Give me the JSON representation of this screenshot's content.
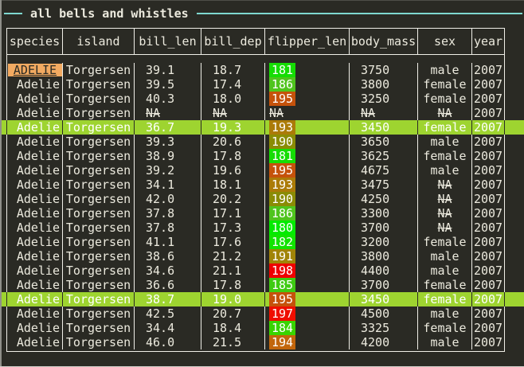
{
  "title": "all bells and whistles",
  "colors": {
    "bg": "#2a2a24",
    "text": "#eceade",
    "border": "#f0efe8",
    "accent_rule": "#7fd8d0",
    "hl": "#9ed430",
    "badge_bg": "#f2aa61",
    "badge_text": "#2a2a24",
    "chip_text": "#ffffff",
    "edge": "#8f8f89",
    "bottom_line": "#cfcfc9"
  },
  "table": {
    "columns": [
      {
        "key": "species",
        "label": "species"
      },
      {
        "key": "island",
        "label": "island"
      },
      {
        "key": "bill_len",
        "label": "bill_len"
      },
      {
        "key": "bill_dep",
        "label": "bill_dep"
      },
      {
        "key": "flipper_len",
        "label": "flipper_len"
      },
      {
        "key": "body_mass",
        "label": "body_mass"
      },
      {
        "key": "sex",
        "label": "sex"
      },
      {
        "key": "year",
        "label": "year"
      }
    ],
    "rows": [
      {
        "species": "ADELIE",
        "badge": true,
        "island": "Torgersen",
        "bill_len": "39.1",
        "bill_dep": "18.7",
        "flipper_len": "181",
        "flipper_color": "#15dd04",
        "body_mass": "3750",
        "sex": "male",
        "year": "2007",
        "highlight": false
      },
      {
        "species": "Adelie",
        "island": "Torgersen",
        "bill_len": "39.5",
        "bill_dep": "17.4",
        "flipper_len": "186",
        "flipper_color": "#4fc41d",
        "body_mass": "3800",
        "sex": "female",
        "year": "2007",
        "highlight": false
      },
      {
        "species": "Adelie",
        "island": "Torgersen",
        "bill_len": "40.3",
        "bill_dep": "18.0",
        "flipper_len": "195",
        "flipper_color": "#c5520b",
        "body_mass": "3250",
        "sex": "female",
        "year": "2007",
        "highlight": false
      },
      {
        "species": "Adelie",
        "island": "Torgersen",
        "bill_len": "NA",
        "bill_dep": "NA",
        "flipper_len": "NA",
        "body_mass": "NA",
        "sex": "NA",
        "year": "2007",
        "highlight": false
      },
      {
        "species": "Adelie",
        "island": "Torgersen",
        "bill_len": "36.7",
        "bill_dep": "19.3",
        "flipper_len": "193",
        "flipper_color": "#ab7b08",
        "body_mass": "3450",
        "sex": "female",
        "year": "2007",
        "highlight": true
      },
      {
        "species": "Adelie",
        "island": "Torgersen",
        "bill_len": "39.3",
        "bill_dep": "20.6",
        "flipper_len": "190",
        "flipper_color": "#8a8c05",
        "body_mass": "3650",
        "sex": "male",
        "year": "2007",
        "highlight": false
      },
      {
        "species": "Adelie",
        "island": "Torgersen",
        "bill_len": "38.9",
        "bill_dep": "17.8",
        "flipper_len": "181",
        "flipper_color": "#15dd04",
        "body_mass": "3625",
        "sex": "female",
        "year": "2007",
        "highlight": false
      },
      {
        "species": "Adelie",
        "island": "Torgersen",
        "bill_len": "39.2",
        "bill_dep": "19.6",
        "flipper_len": "195",
        "flipper_color": "#c5520b",
        "body_mass": "4675",
        "sex": "male",
        "year": "2007",
        "highlight": false
      },
      {
        "species": "Adelie",
        "island": "Torgersen",
        "bill_len": "34.1",
        "bill_dep": "18.1",
        "flipper_len": "193",
        "flipper_color": "#ab7b08",
        "body_mass": "3475",
        "sex": "NA",
        "year": "2007",
        "highlight": false
      },
      {
        "species": "Adelie",
        "island": "Torgersen",
        "bill_len": "42.0",
        "bill_dep": "20.2",
        "flipper_len": "190",
        "flipper_color": "#8a8c05",
        "body_mass": "4250",
        "sex": "NA",
        "year": "2007",
        "highlight": false
      },
      {
        "species": "Adelie",
        "island": "Torgersen",
        "bill_len": "37.8",
        "bill_dep": "17.1",
        "flipper_len": "186",
        "flipper_color": "#4fc41d",
        "body_mass": "3300",
        "sex": "NA",
        "year": "2007",
        "highlight": false
      },
      {
        "species": "Adelie",
        "island": "Torgersen",
        "bill_len": "37.8",
        "bill_dep": "17.3",
        "flipper_len": "180",
        "flipper_color": "#03ea00",
        "body_mass": "3700",
        "sex": "NA",
        "year": "2007",
        "highlight": false
      },
      {
        "species": "Adelie",
        "island": "Torgersen",
        "bill_len": "41.1",
        "bill_dep": "17.6",
        "flipper_len": "182",
        "flipper_color": "#12e300",
        "body_mass": "3200",
        "sex": "female",
        "year": "2007",
        "highlight": false
      },
      {
        "species": "Adelie",
        "island": "Torgersen",
        "bill_len": "38.6",
        "bill_dep": "21.2",
        "flipper_len": "191",
        "flipper_color": "#a08408",
        "body_mass": "3800",
        "sex": "male",
        "year": "2007",
        "highlight": false
      },
      {
        "species": "Adelie",
        "island": "Torgersen",
        "bill_len": "34.6",
        "bill_dep": "21.1",
        "flipper_len": "198",
        "flipper_color": "#ee0000",
        "body_mass": "4400",
        "sex": "male",
        "year": "2007",
        "highlight": false
      },
      {
        "species": "Adelie",
        "island": "Torgersen",
        "bill_len": "36.6",
        "bill_dep": "17.8",
        "flipper_len": "185",
        "flipper_color": "#3ecb12",
        "body_mass": "3700",
        "sex": "female",
        "year": "2007",
        "highlight": false
      },
      {
        "species": "Adelie",
        "island": "Torgersen",
        "bill_len": "38.7",
        "bill_dep": "19.0",
        "flipper_len": "195",
        "flipper_color": "#c5520b",
        "body_mass": "3450",
        "sex": "female",
        "year": "2007",
        "highlight": true
      },
      {
        "species": "Adelie",
        "island": "Torgersen",
        "bill_len": "42.5",
        "bill_dep": "20.7",
        "flipper_len": "197",
        "flipper_color": "#ef0e00",
        "body_mass": "4500",
        "sex": "male",
        "year": "2007",
        "highlight": false
      },
      {
        "species": "Adelie",
        "island": "Torgersen",
        "bill_len": "34.4",
        "bill_dep": "18.4",
        "flipper_len": "184",
        "flipper_color": "#39d400",
        "body_mass": "3325",
        "sex": "female",
        "year": "2007",
        "highlight": false
      },
      {
        "species": "Adelie",
        "island": "Torgersen",
        "bill_len": "46.0",
        "bill_dep": "21.5",
        "flipper_len": "194",
        "flipper_color": "#c2660c",
        "body_mass": "4200",
        "sex": "male",
        "year": "2007",
        "highlight": false
      }
    ]
  }
}
